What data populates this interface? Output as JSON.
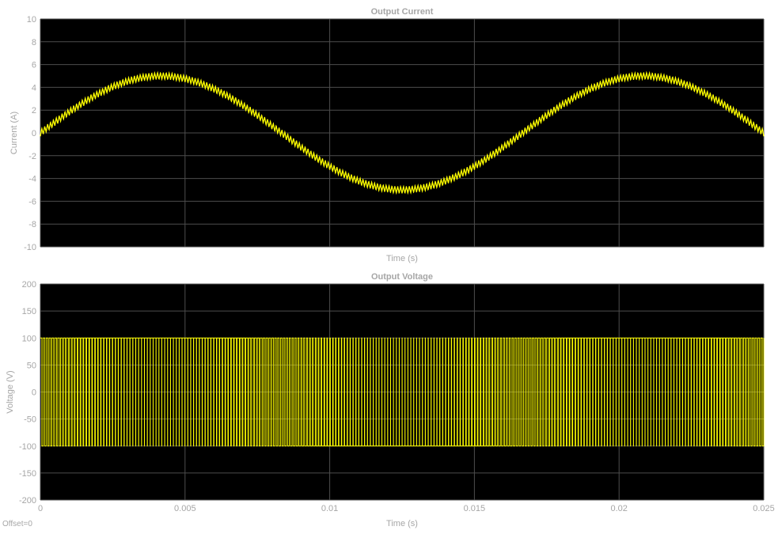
{
  "footer": {
    "offset_label": "Offset=0"
  },
  "colors": {
    "background": "#ffffff",
    "plot_area": "#000000",
    "grid": "#4d4d4d",
    "trace": "#ffff00",
    "text": "#a6a6a6",
    "title": "#a6a6a6"
  },
  "chart_data": [
    {
      "type": "line",
      "title": "Output Current",
      "xlabel": "Time (s)",
      "ylabel": "Current (A)",
      "xlim": [
        0,
        0.025
      ],
      "ylim": [
        -10,
        10
      ],
      "xticks": [
        0,
        0.005,
        0.01,
        0.015,
        0.02,
        0.025
      ],
      "xtick_labels": [
        "",
        "",
        "",
        "",
        "",
        ""
      ],
      "yticks": [
        -10,
        -8,
        -6,
        -4,
        -2,
        0,
        2,
        4,
        6,
        8,
        10
      ],
      "ytick_labels": [
        "-10",
        "-8",
        "-6",
        "-4",
        "-2",
        "0",
        "2",
        "4",
        "6",
        "8",
        "10"
      ],
      "grid": true,
      "series": [
        {
          "waveform": "sine with switching ripple",
          "amplitude": 5,
          "frequency_hz": 60,
          "phase_rad": 0,
          "ripple_peak_to_peak": 0.6,
          "ripple_frequency_hz": 10000
        }
      ]
    },
    {
      "type": "line",
      "title": "Output Voltage",
      "xlabel": "Time (s)",
      "ylabel": "Voltage (V)",
      "xlim": [
        0,
        0.025
      ],
      "ylim": [
        -200,
        200
      ],
      "xticks": [
        0,
        0.005,
        0.01,
        0.015,
        0.02,
        0.025
      ],
      "xtick_labels": [
        "0",
        "0.005",
        "0.01",
        "0.015",
        "0.02",
        "0.025"
      ],
      "yticks": [
        -200,
        -150,
        -100,
        -50,
        0,
        50,
        100,
        150,
        200
      ],
      "ytick_labels": [
        "-200",
        "-150",
        "-100",
        "-50",
        "0",
        "50",
        "100",
        "150",
        "200"
      ],
      "grid": true,
      "series": [
        {
          "waveform": "bipolar PWM square wave",
          "levels": [
            -100,
            100
          ],
          "switching_frequency_hz": 10000,
          "modulating_frequency_hz": 60
        }
      ]
    }
  ]
}
